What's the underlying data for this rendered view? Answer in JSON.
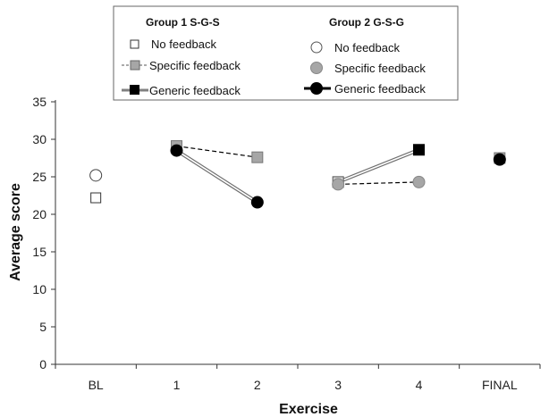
{
  "chart_data": {
    "type": "line",
    "title": "",
    "xlabel": "Exercise",
    "ylabel": "Average  score",
    "categories": [
      "BL",
      "1",
      "2",
      "3",
      "4",
      "FINAL"
    ],
    "ylim": [
      0,
      35
    ],
    "yticks": [
      "0",
      "5",
      "10",
      "15",
      "20",
      "25",
      "30",
      "35"
    ],
    "grid": false,
    "legend": {
      "placement": "top-center",
      "group1_title": "Group 1  S-G-S",
      "group2_title": "Group 2   G-S-G",
      "g1_items": [
        "No feedback",
        "Specific feedback",
        "Generic feedback"
      ],
      "g2_items": [
        "No feedback",
        "Specific feedback",
        "Generic feedback"
      ]
    },
    "colors": {
      "specific_fill": "#a6a6a6",
      "generic_fill": "#000000",
      "none_fill": "#ffffff",
      "connector_group1": "#808080",
      "connector_group2": "#000000"
    },
    "points": [
      {
        "name": "g1-no-feedback-bl",
        "group": 1,
        "cond": "none",
        "x": "BL",
        "y": 22.2
      },
      {
        "name": "g2-no-feedback-bl",
        "group": 2,
        "cond": "none",
        "x": "BL",
        "y": 25.2
      },
      {
        "name": "g1-specific-ex1",
        "group": 1,
        "cond": "specific",
        "x": "1",
        "y": 29.1
      },
      {
        "name": "g2-generic-ex1",
        "group": 2,
        "cond": "generic",
        "x": "1",
        "y": 28.5
      },
      {
        "name": "g1-specific-ex2",
        "group": 1,
        "cond": "specific",
        "x": "2",
        "y": 27.6
      },
      {
        "name": "g2-generic-ex2",
        "group": 2,
        "cond": "generic",
        "x": "2",
        "y": 21.6
      },
      {
        "name": "g1-square-ex3",
        "group": 1,
        "cond": "square-mid",
        "x": "3",
        "y": 24.3
      },
      {
        "name": "g2-specific-ex3",
        "group": 2,
        "cond": "specific",
        "x": "3",
        "y": 24.0
      },
      {
        "name": "g1-generic-ex4",
        "group": 1,
        "cond": "generic",
        "x": "4",
        "y": 28.6
      },
      {
        "name": "g2-specific-ex4",
        "group": 2,
        "cond": "specific",
        "x": "4",
        "y": 24.3
      },
      {
        "name": "g1-specific-final",
        "group": 1,
        "cond": "specific",
        "x": "FINAL",
        "y": 27.5
      },
      {
        "name": "g2-generic-final",
        "group": 2,
        "cond": "generic",
        "x": "FINAL",
        "y": 27.3
      }
    ],
    "connectors": [
      {
        "name": "g1-ex1-ex2-dashed",
        "style": "dashed",
        "x1": "1",
        "y1": 29.1,
        "x2": "2",
        "y2": 27.6
      },
      {
        "name": "g2-ex1-ex2-double",
        "style": "double",
        "x1": "1",
        "y1": 28.5,
        "x2": "2",
        "y2": 21.6
      },
      {
        "name": "g1-ex3-ex4-double",
        "style": "double",
        "x1": "3",
        "y1": 24.3,
        "x2": "4",
        "y2": 28.6
      },
      {
        "name": "g2-ex3-ex4-dashed",
        "style": "dashed",
        "x1": "3",
        "y1": 24.0,
        "x2": "4",
        "y2": 24.3
      }
    ]
  }
}
